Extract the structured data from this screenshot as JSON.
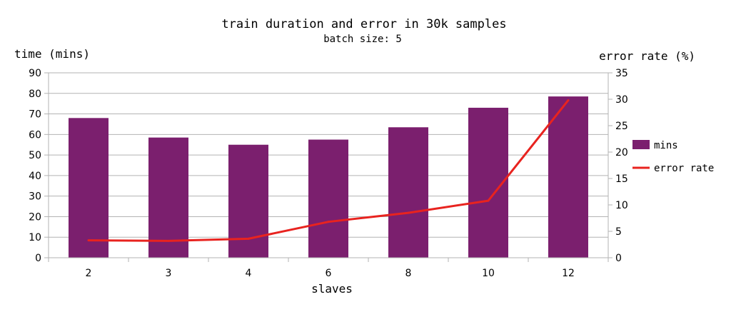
{
  "chart_data": {
    "type": "bar",
    "title": "train duration and error in 30k samples",
    "subtitle": "batch size: 5",
    "xlabel": "slaves",
    "ylabel_left": "time (mins)",
    "ylabel_right": "error rate (%)",
    "categories": [
      "2",
      "3",
      "4",
      "6",
      "8",
      "10",
      "12"
    ],
    "ylim_left": [
      0,
      90
    ],
    "ylim_right": [
      0,
      35
    ],
    "yticks_left": [
      0,
      10,
      20,
      30,
      40,
      50,
      60,
      70,
      80,
      90
    ],
    "yticks_right": [
      0,
      5,
      10,
      15,
      20,
      25,
      30,
      35
    ],
    "grid": true,
    "legend_position": "right",
    "series": [
      {
        "name": "mins",
        "type": "bar",
        "axis": "left",
        "color": "#7b1f6e",
        "values": [
          68,
          58.5,
          55,
          57.5,
          63.5,
          73,
          78.5
        ]
      },
      {
        "name": "error rate",
        "type": "line",
        "axis": "right",
        "color": "#e8231f",
        "values": [
          3.3,
          3.2,
          3.6,
          6.8,
          8.5,
          10.8,
          29.8
        ]
      }
    ]
  }
}
